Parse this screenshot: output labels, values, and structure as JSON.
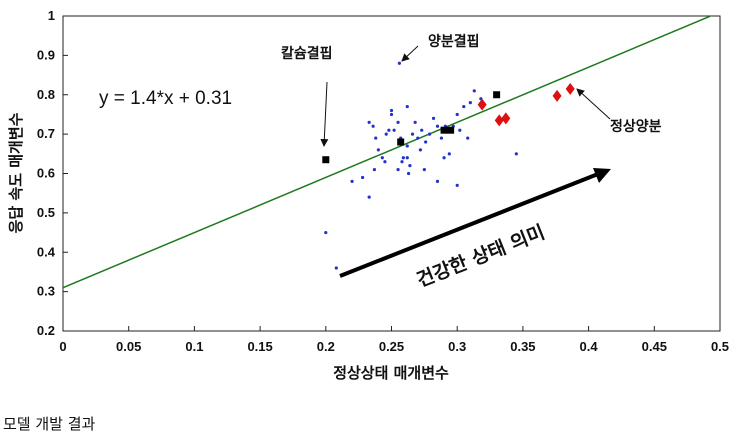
{
  "caption": "모델 개발 결과",
  "colors": {
    "fit_line": "#1e7a1e",
    "blue_points": "#2233cc",
    "black_points": "#000000",
    "red_points": "#dd1111"
  },
  "chart_data": {
    "type": "scatter",
    "xlabel": "정상상태 매개변수",
    "ylabel": "응답 속도 매개변수",
    "xlim": [
      0,
      0.5
    ],
    "ylim": [
      0.2,
      1.0
    ],
    "xticks": [
      "0",
      "0.05",
      "0.1",
      "0.15",
      "0.2",
      "0.25",
      "0.3",
      "0.35",
      "0.4",
      "0.45",
      "0.5"
    ],
    "yticks": [
      "0.2",
      "0.3",
      "0.4",
      "0.5",
      "0.6",
      "0.7",
      "0.8",
      "0.9",
      "1"
    ],
    "fit_line": {
      "equation": "y = 1.4*x + 0.31",
      "slope": 1.4,
      "intercept": 0.31
    },
    "series": [
      {
        "marker": "dot",
        "color": "#2233cc",
        "points": [
          [
            0.233,
            0.73
          ],
          [
            0.236,
            0.72
          ],
          [
            0.238,
            0.69
          ],
          [
            0.24,
            0.66
          ],
          [
            0.243,
            0.64
          ],
          [
            0.246,
            0.7
          ],
          [
            0.248,
            0.71
          ],
          [
            0.25,
            0.75
          ],
          [
            0.252,
            0.71
          ],
          [
            0.255,
            0.73
          ],
          [
            0.257,
            0.69
          ],
          [
            0.259,
            0.64
          ],
          [
            0.262,
            0.67
          ],
          [
            0.264,
            0.62
          ],
          [
            0.266,
            0.7
          ],
          [
            0.268,
            0.73
          ],
          [
            0.27,
            0.69
          ],
          [
            0.273,
            0.71
          ],
          [
            0.276,
            0.68
          ],
          [
            0.279,
            0.7
          ],
          [
            0.282,
            0.74
          ],
          [
            0.285,
            0.72
          ],
          [
            0.288,
            0.69
          ],
          [
            0.291,
            0.72
          ],
          [
            0.294,
            0.65
          ],
          [
            0.297,
            0.72
          ],
          [
            0.3,
            0.75
          ],
          [
            0.302,
            0.71
          ],
          [
            0.305,
            0.77
          ],
          [
            0.308,
            0.69
          ],
          [
            0.31,
            0.78
          ],
          [
            0.313,
            0.81
          ],
          [
            0.318,
            0.79
          ],
          [
            0.255,
            0.61
          ],
          [
            0.245,
            0.63
          ],
          [
            0.258,
            0.63
          ],
          [
            0.262,
            0.64
          ],
          [
            0.272,
            0.66
          ],
          [
            0.275,
            0.61
          ],
          [
            0.285,
            0.58
          ],
          [
            0.3,
            0.57
          ],
          [
            0.263,
            0.6
          ],
          [
            0.237,
            0.61
          ],
          [
            0.233,
            0.54
          ],
          [
            0.228,
            0.59
          ],
          [
            0.22,
            0.58
          ],
          [
            0.262,
            0.77
          ],
          [
            0.25,
            0.76
          ],
          [
            0.29,
            0.64
          ],
          [
            0.345,
            0.65
          ],
          [
            0.2,
            0.45
          ],
          [
            0.208,
            0.36
          ],
          [
            0.256,
            0.88
          ]
        ]
      },
      {
        "marker": "square",
        "color": "#000000",
        "points": [
          [
            0.2,
            0.635
          ],
          [
            0.257,
            0.68
          ],
          [
            0.29,
            0.71
          ],
          [
            0.295,
            0.71
          ],
          [
            0.33,
            0.8
          ]
        ]
      },
      {
        "marker": "diamond",
        "color": "#dd1111",
        "points": [
          [
            0.319,
            0.775
          ],
          [
            0.332,
            0.735
          ],
          [
            0.337,
            0.74
          ],
          [
            0.376,
            0.797
          ],
          [
            0.386,
            0.815
          ]
        ]
      }
    ],
    "annotations": [
      {
        "text": "칼슘결핍",
        "target": [
          0.198,
          0.645
        ]
      },
      {
        "text": "양분결핍",
        "target": [
          0.253,
          0.875
        ]
      },
      {
        "text": "정상양분",
        "target": [
          0.388,
          0.812
        ]
      }
    ],
    "trend_label": "건강한 상태 의미"
  }
}
